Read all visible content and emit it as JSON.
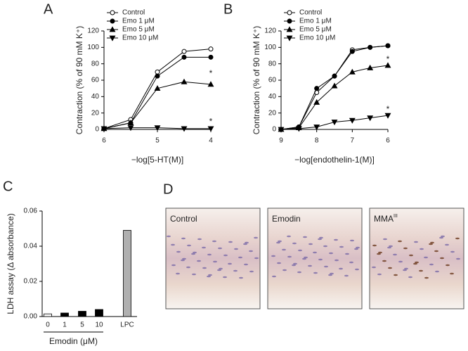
{
  "chart_data": [
    {
      "type": "line",
      "title": "A",
      "x_label": "−log[5-HT(M)]",
      "y_label": "Contraction (% of 90 mM K⁺)",
      "x": [
        6,
        5.5,
        5,
        4.5,
        4
      ],
      "xlim": [
        6,
        4
      ],
      "xticks": [
        6,
        5,
        4
      ],
      "ylim": [
        0,
        120
      ],
      "yticks": [
        0,
        20,
        40,
        60,
        80,
        100,
        120
      ],
      "legend": "upper-left",
      "series": [
        {
          "name": "Control",
          "color": "#000000",
          "marker": "open-circle",
          "values": [
            1,
            12,
            70,
            95,
            98
          ]
        },
        {
          "name": "Emo 1 μM",
          "color": "#000000",
          "marker": "circle",
          "values": [
            1,
            8,
            65,
            88,
            88
          ]
        },
        {
          "name": "Emo 5 μM",
          "color": "#000000",
          "marker": "triangle-up",
          "values": [
            1,
            8,
            50,
            58,
            55
          ]
        },
        {
          "name": "Emo 10 μM",
          "color": "#000000",
          "marker": "triangle-down",
          "values": [
            1,
            2,
            2,
            1,
            1
          ]
        }
      ],
      "annotations": [
        {
          "text": "*",
          "x": 4,
          "y": 68
        },
        {
          "text": "*",
          "x": 4,
          "y": 9
        }
      ]
    },
    {
      "type": "line",
      "title": "B",
      "x_label": "−log[endothelin-1(M)]",
      "y_label": "Contraction (% of 90 mM K⁺)",
      "x": [
        9,
        8.5,
        8,
        7.5,
        7,
        6.5,
        6
      ],
      "xlim": [
        9,
        6
      ],
      "xticks": [
        9,
        8,
        7,
        6
      ],
      "ylim": [
        0,
        120
      ],
      "yticks": [
        0,
        20,
        40,
        60,
        80,
        100,
        120
      ],
      "legend": "upper-left",
      "series": [
        {
          "name": "Control",
          "color": "#000000",
          "marker": "open-circle",
          "values": [
            0,
            3,
            45,
            65,
            97,
            100,
            102
          ]
        },
        {
          "name": "Emo 1 μM",
          "color": "#000000",
          "marker": "circle",
          "values": [
            0,
            3,
            50,
            65,
            95,
            100,
            102
          ]
        },
        {
          "name": "Emo 5 μM",
          "color": "#000000",
          "marker": "triangle-up",
          "values": [
            0,
            2,
            33,
            53,
            70,
            75,
            78
          ]
        },
        {
          "name": "Emo 10 μM",
          "color": "#000000",
          "marker": "triangle-down",
          "values": [
            0,
            1,
            3,
            9,
            11,
            14,
            17
          ]
        }
      ],
      "annotations": [
        {
          "text": "*",
          "x": 6,
          "y": 85
        },
        {
          "text": "*",
          "x": 6,
          "y": 24
        }
      ]
    },
    {
      "type": "bar",
      "title": "C",
      "x_label": "Emodin (μM)",
      "y_label": "LDH assay (Δ absorbance)",
      "categories": [
        "0",
        "1",
        "5",
        "10",
        "LPC"
      ],
      "values": [
        0.0015,
        0.002,
        0.003,
        0.004,
        0.049
      ],
      "colors": [
        "#ffffff",
        "#000000",
        "#000000",
        "#000000",
        "#b0b0b0"
      ],
      "ylim": [
        0,
        0.06
      ],
      "yticks": [
        {
          "value": 0,
          "label": "0.00"
        },
        {
          "value": 0.02,
          "label": "0.02"
        },
        {
          "value": 0.04,
          "label": "0.04"
        },
        {
          "value": 0.06,
          "label": "0.06"
        }
      ]
    }
  ],
  "panel_d": {
    "title": "D",
    "images": [
      {
        "label": "Control"
      },
      {
        "label": "Emodin"
      },
      {
        "label": "MMA",
        "sup": "III"
      }
    ]
  }
}
